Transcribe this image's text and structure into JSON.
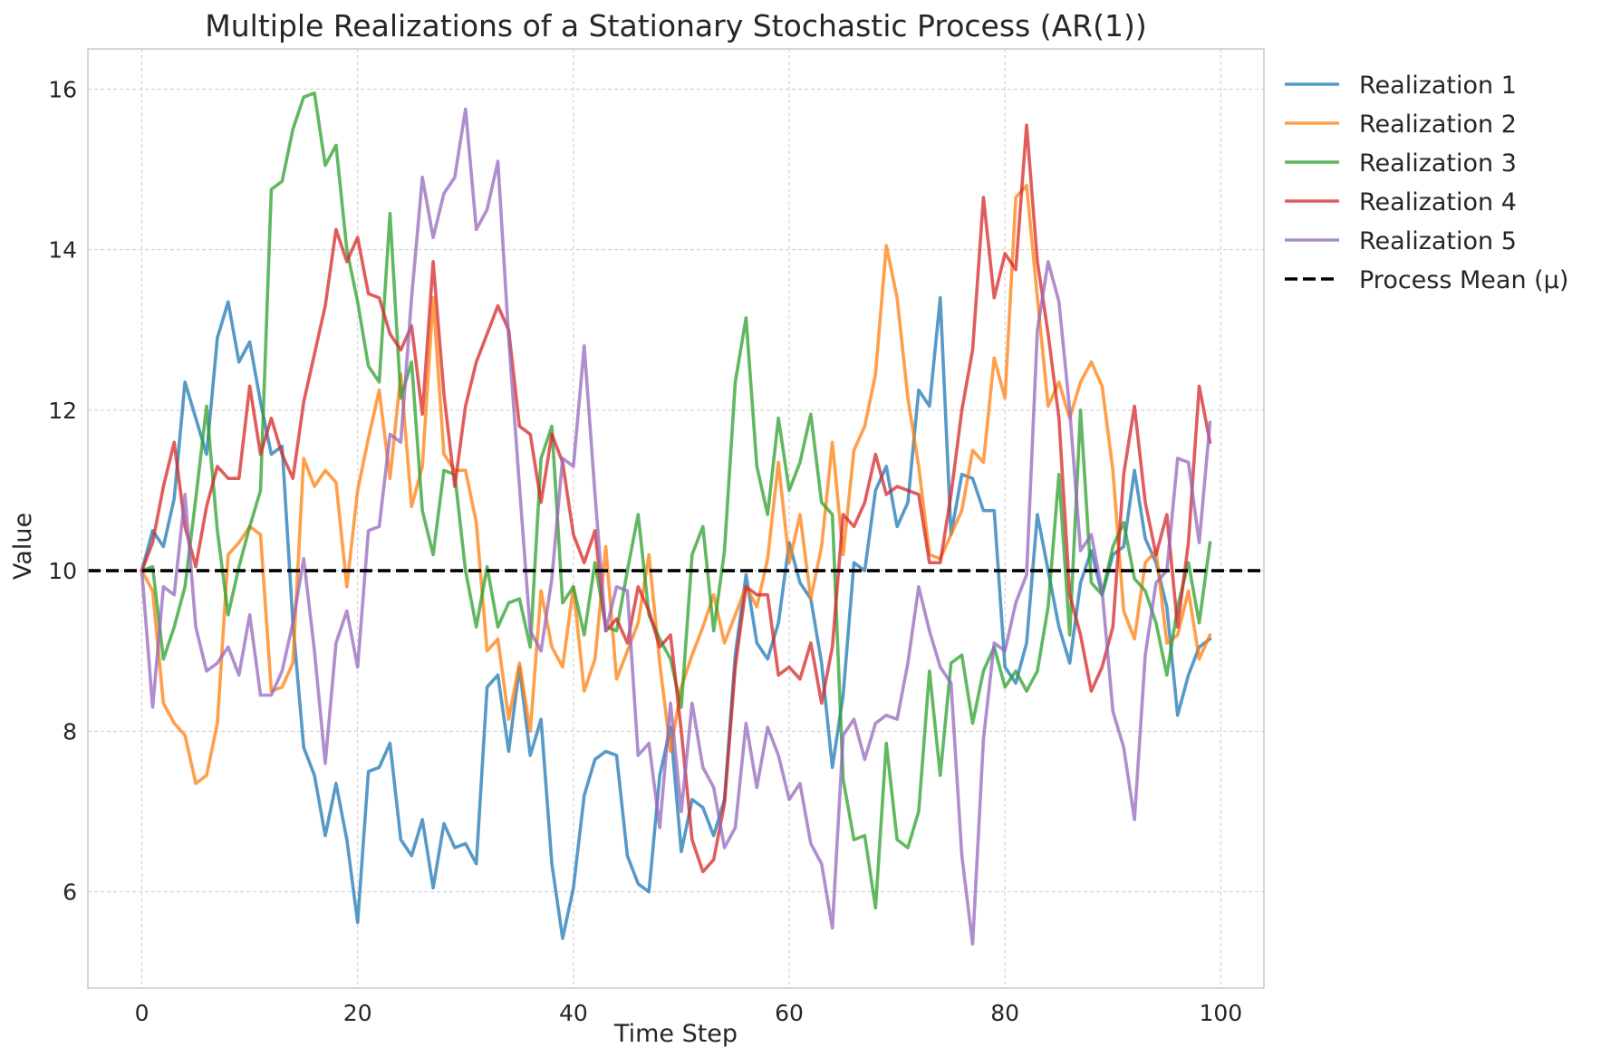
{
  "chart_data": {
    "type": "line",
    "title": "Multiple Realizations of a Stationary Stochastic Process (AR(1))",
    "xlabel": "Time Step",
    "ylabel": "Value",
    "xlim": [
      -5,
      104
    ],
    "ylim": [
      4.8,
      16.5
    ],
    "xticks": [
      0,
      20,
      40,
      60,
      80,
      100
    ],
    "yticks": [
      6,
      8,
      10,
      12,
      14,
      16
    ],
    "x_tick_labels": [
      "0",
      "20",
      "40",
      "60",
      "80",
      "100"
    ],
    "y_tick_labels": [
      "6",
      "8",
      "10",
      "12",
      "14",
      "16"
    ],
    "grid": true,
    "legend_position": "outside-top-right",
    "x": [
      0,
      1,
      2,
      3,
      4,
      5,
      6,
      7,
      8,
      9,
      10,
      11,
      12,
      13,
      14,
      15,
      16,
      17,
      18,
      19,
      20,
      21,
      22,
      23,
      24,
      25,
      26,
      27,
      28,
      29,
      30,
      31,
      32,
      33,
      34,
      35,
      36,
      37,
      38,
      39,
      40,
      41,
      42,
      43,
      44,
      45,
      46,
      47,
      48,
      49,
      50,
      51,
      52,
      53,
      54,
      55,
      56,
      57,
      58,
      59,
      60,
      61,
      62,
      63,
      64,
      65,
      66,
      67,
      68,
      69,
      70,
      71,
      72,
      73,
      74,
      75,
      76,
      77,
      78,
      79,
      80,
      81,
      82,
      83,
      84,
      85,
      86,
      87,
      88,
      89,
      90,
      91,
      92,
      93,
      94,
      95,
      96,
      97,
      98,
      99
    ],
    "series": [
      {
        "name": "Realization 1",
        "color": "#1f77b4",
        "values": [
          10.0,
          10.5,
          10.3,
          10.9,
          12.35,
          11.9,
          11.45,
          12.9,
          13.35,
          12.6,
          12.85,
          12.1,
          11.45,
          11.55,
          9.35,
          7.8,
          7.45,
          6.7,
          7.35,
          6.65,
          5.62,
          7.5,
          7.55,
          7.85,
          6.65,
          6.45,
          6.9,
          6.05,
          6.85,
          6.55,
          6.6,
          6.35,
          8.55,
          8.7,
          7.75,
          8.8,
          7.7,
          8.15,
          6.35,
          5.42,
          6.05,
          7.2,
          7.65,
          7.75,
          7.7,
          6.45,
          6.1,
          6.0,
          7.45,
          8.05,
          6.5,
          7.15,
          7.05,
          6.7,
          7.15,
          8.95,
          9.95,
          9.1,
          8.9,
          9.35,
          10.35,
          9.85,
          9.65,
          8.85,
          7.55,
          8.45,
          10.1,
          10.0,
          11.0,
          11.3,
          10.55,
          10.85,
          12.25,
          12.05,
          13.4,
          10.45,
          11.2,
          11.15,
          10.75,
          10.75,
          8.8,
          8.6,
          9.1,
          10.7,
          10.0,
          9.3,
          8.85,
          9.85,
          10.25,
          9.7,
          10.2,
          10.3,
          11.25,
          10.4,
          10.1,
          9.55,
          8.2,
          8.7,
          9.05,
          9.15
        ]
      },
      {
        "name": "Realization 2",
        "color": "#ff7f0e",
        "values": [
          10.0,
          9.75,
          8.35,
          8.1,
          7.95,
          7.35,
          7.45,
          8.1,
          10.2,
          10.35,
          10.55,
          10.45,
          8.5,
          8.55,
          8.85,
          11.4,
          11.05,
          11.25,
          11.1,
          9.8,
          11.0,
          11.65,
          12.25,
          11.15,
          12.45,
          10.8,
          11.3,
          13.4,
          11.45,
          11.25,
          11.25,
          10.6,
          9.0,
          9.15,
          8.15,
          8.85,
          8.0,
          9.75,
          9.05,
          8.8,
          9.8,
          8.5,
          8.9,
          10.3,
          8.65,
          9.0,
          9.35,
          10.2,
          8.85,
          7.75,
          8.55,
          8.95,
          9.3,
          9.7,
          9.1,
          9.45,
          9.8,
          9.55,
          10.15,
          11.35,
          10.1,
          10.7,
          9.65,
          10.3,
          11.6,
          10.2,
          11.5,
          11.8,
          12.45,
          14.05,
          13.4,
          12.15,
          11.3,
          10.2,
          10.15,
          10.45,
          10.75,
          11.5,
          11.35,
          12.65,
          12.15,
          14.65,
          14.8,
          13.4,
          12.05,
          12.35,
          11.9,
          12.35,
          12.6,
          12.3,
          11.25,
          9.5,
          9.15,
          10.1,
          10.25,
          9.1,
          9.2,
          9.75,
          8.9,
          9.2
        ]
      },
      {
        "name": "Realization 3",
        "color": "#2ca02c",
        "values": [
          10.0,
          10.05,
          8.9,
          9.3,
          9.8,
          10.9,
          12.05,
          10.5,
          9.45,
          10.05,
          10.55,
          11.0,
          14.75,
          14.85,
          15.5,
          15.9,
          15.95,
          15.05,
          15.3,
          14.0,
          13.35,
          12.55,
          12.35,
          14.45,
          12.15,
          12.6,
          10.75,
          10.2,
          11.25,
          11.2,
          10.0,
          9.3,
          10.05,
          9.3,
          9.6,
          9.65,
          9.05,
          11.4,
          11.8,
          9.6,
          9.8,
          9.2,
          10.1,
          9.3,
          9.25,
          10.0,
          10.7,
          9.45,
          9.15,
          8.9,
          8.3,
          10.2,
          10.55,
          9.25,
          10.25,
          12.35,
          13.15,
          11.3,
          10.7,
          11.9,
          11.0,
          11.35,
          11.95,
          10.85,
          10.7,
          7.4,
          6.65,
          6.7,
          5.8,
          7.85,
          6.65,
          6.55,
          7.0,
          8.75,
          7.45,
          8.85,
          8.95,
          8.1,
          8.75,
          9.05,
          8.55,
          8.75,
          8.5,
          8.75,
          9.55,
          11.2,
          9.2,
          12.0,
          9.85,
          9.7,
          10.3,
          10.6,
          9.9,
          9.75,
          9.35,
          8.7,
          9.55,
          10.1,
          9.35,
          10.35
        ]
      },
      {
        "name": "Realization 4",
        "color": "#d62728",
        "values": [
          10.0,
          10.35,
          11.05,
          11.6,
          10.55,
          10.05,
          10.8,
          11.3,
          11.15,
          11.15,
          12.3,
          11.45,
          11.9,
          11.45,
          11.15,
          12.1,
          12.7,
          13.3,
          14.25,
          13.85,
          14.15,
          13.45,
          13.4,
          12.95,
          12.75,
          13.05,
          11.95,
          13.85,
          12.2,
          11.05,
          12.05,
          12.6,
          12.95,
          13.3,
          13.0,
          11.8,
          11.7,
          10.85,
          11.7,
          11.35,
          10.45,
          10.1,
          10.5,
          9.25,
          9.4,
          9.1,
          9.8,
          9.5,
          9.05,
          9.2,
          8.0,
          6.65,
          6.25,
          6.4,
          7.1,
          8.8,
          9.8,
          9.7,
          9.7,
          8.7,
          8.8,
          8.65,
          9.1,
          8.35,
          9.05,
          10.7,
          10.55,
          10.85,
          11.45,
          10.95,
          11.05,
          11.0,
          10.95,
          10.1,
          10.1,
          10.95,
          12.0,
          12.75,
          14.65,
          13.4,
          13.95,
          13.75,
          15.55,
          13.85,
          12.95,
          11.9,
          9.7,
          9.2,
          8.5,
          8.8,
          9.3,
          11.2,
          12.05,
          10.85,
          10.2,
          10.7,
          9.3,
          10.35,
          12.3,
          11.6
        ]
      },
      {
        "name": "Realization 5",
        "color": "#9467bd",
        "values": [
          10.0,
          8.3,
          9.8,
          9.7,
          10.95,
          9.3,
          8.75,
          8.85,
          9.05,
          8.7,
          9.45,
          8.45,
          8.45,
          8.75,
          9.35,
          10.15,
          9.0,
          7.6,
          9.1,
          9.5,
          8.8,
          10.5,
          10.55,
          11.7,
          11.6,
          13.4,
          14.9,
          14.15,
          14.7,
          14.9,
          15.75,
          14.25,
          14.5,
          15.1,
          12.9,
          11.05,
          9.25,
          9.0,
          9.9,
          11.4,
          11.3,
          12.8,
          10.95,
          9.25,
          9.8,
          9.75,
          7.7,
          7.85,
          6.8,
          8.35,
          7.0,
          8.35,
          7.55,
          7.3,
          6.55,
          6.8,
          8.1,
          7.3,
          8.05,
          7.7,
          7.15,
          7.35,
          6.6,
          6.35,
          5.55,
          7.95,
          8.15,
          7.65,
          8.1,
          8.2,
          8.15,
          8.85,
          9.8,
          9.25,
          8.8,
          8.6,
          6.45,
          5.35,
          7.9,
          9.1,
          9.0,
          9.6,
          9.95,
          13.0,
          13.85,
          13.35,
          12.0,
          10.25,
          10.45,
          9.75,
          8.25,
          7.8,
          6.9,
          8.95,
          9.85,
          10.0,
          11.4,
          11.35,
          10.35,
          11.85
        ]
      }
    ],
    "reference_line": {
      "name": "Process Mean (μ)",
      "value": 10.0,
      "color": "#000000",
      "style": "dashed"
    }
  }
}
